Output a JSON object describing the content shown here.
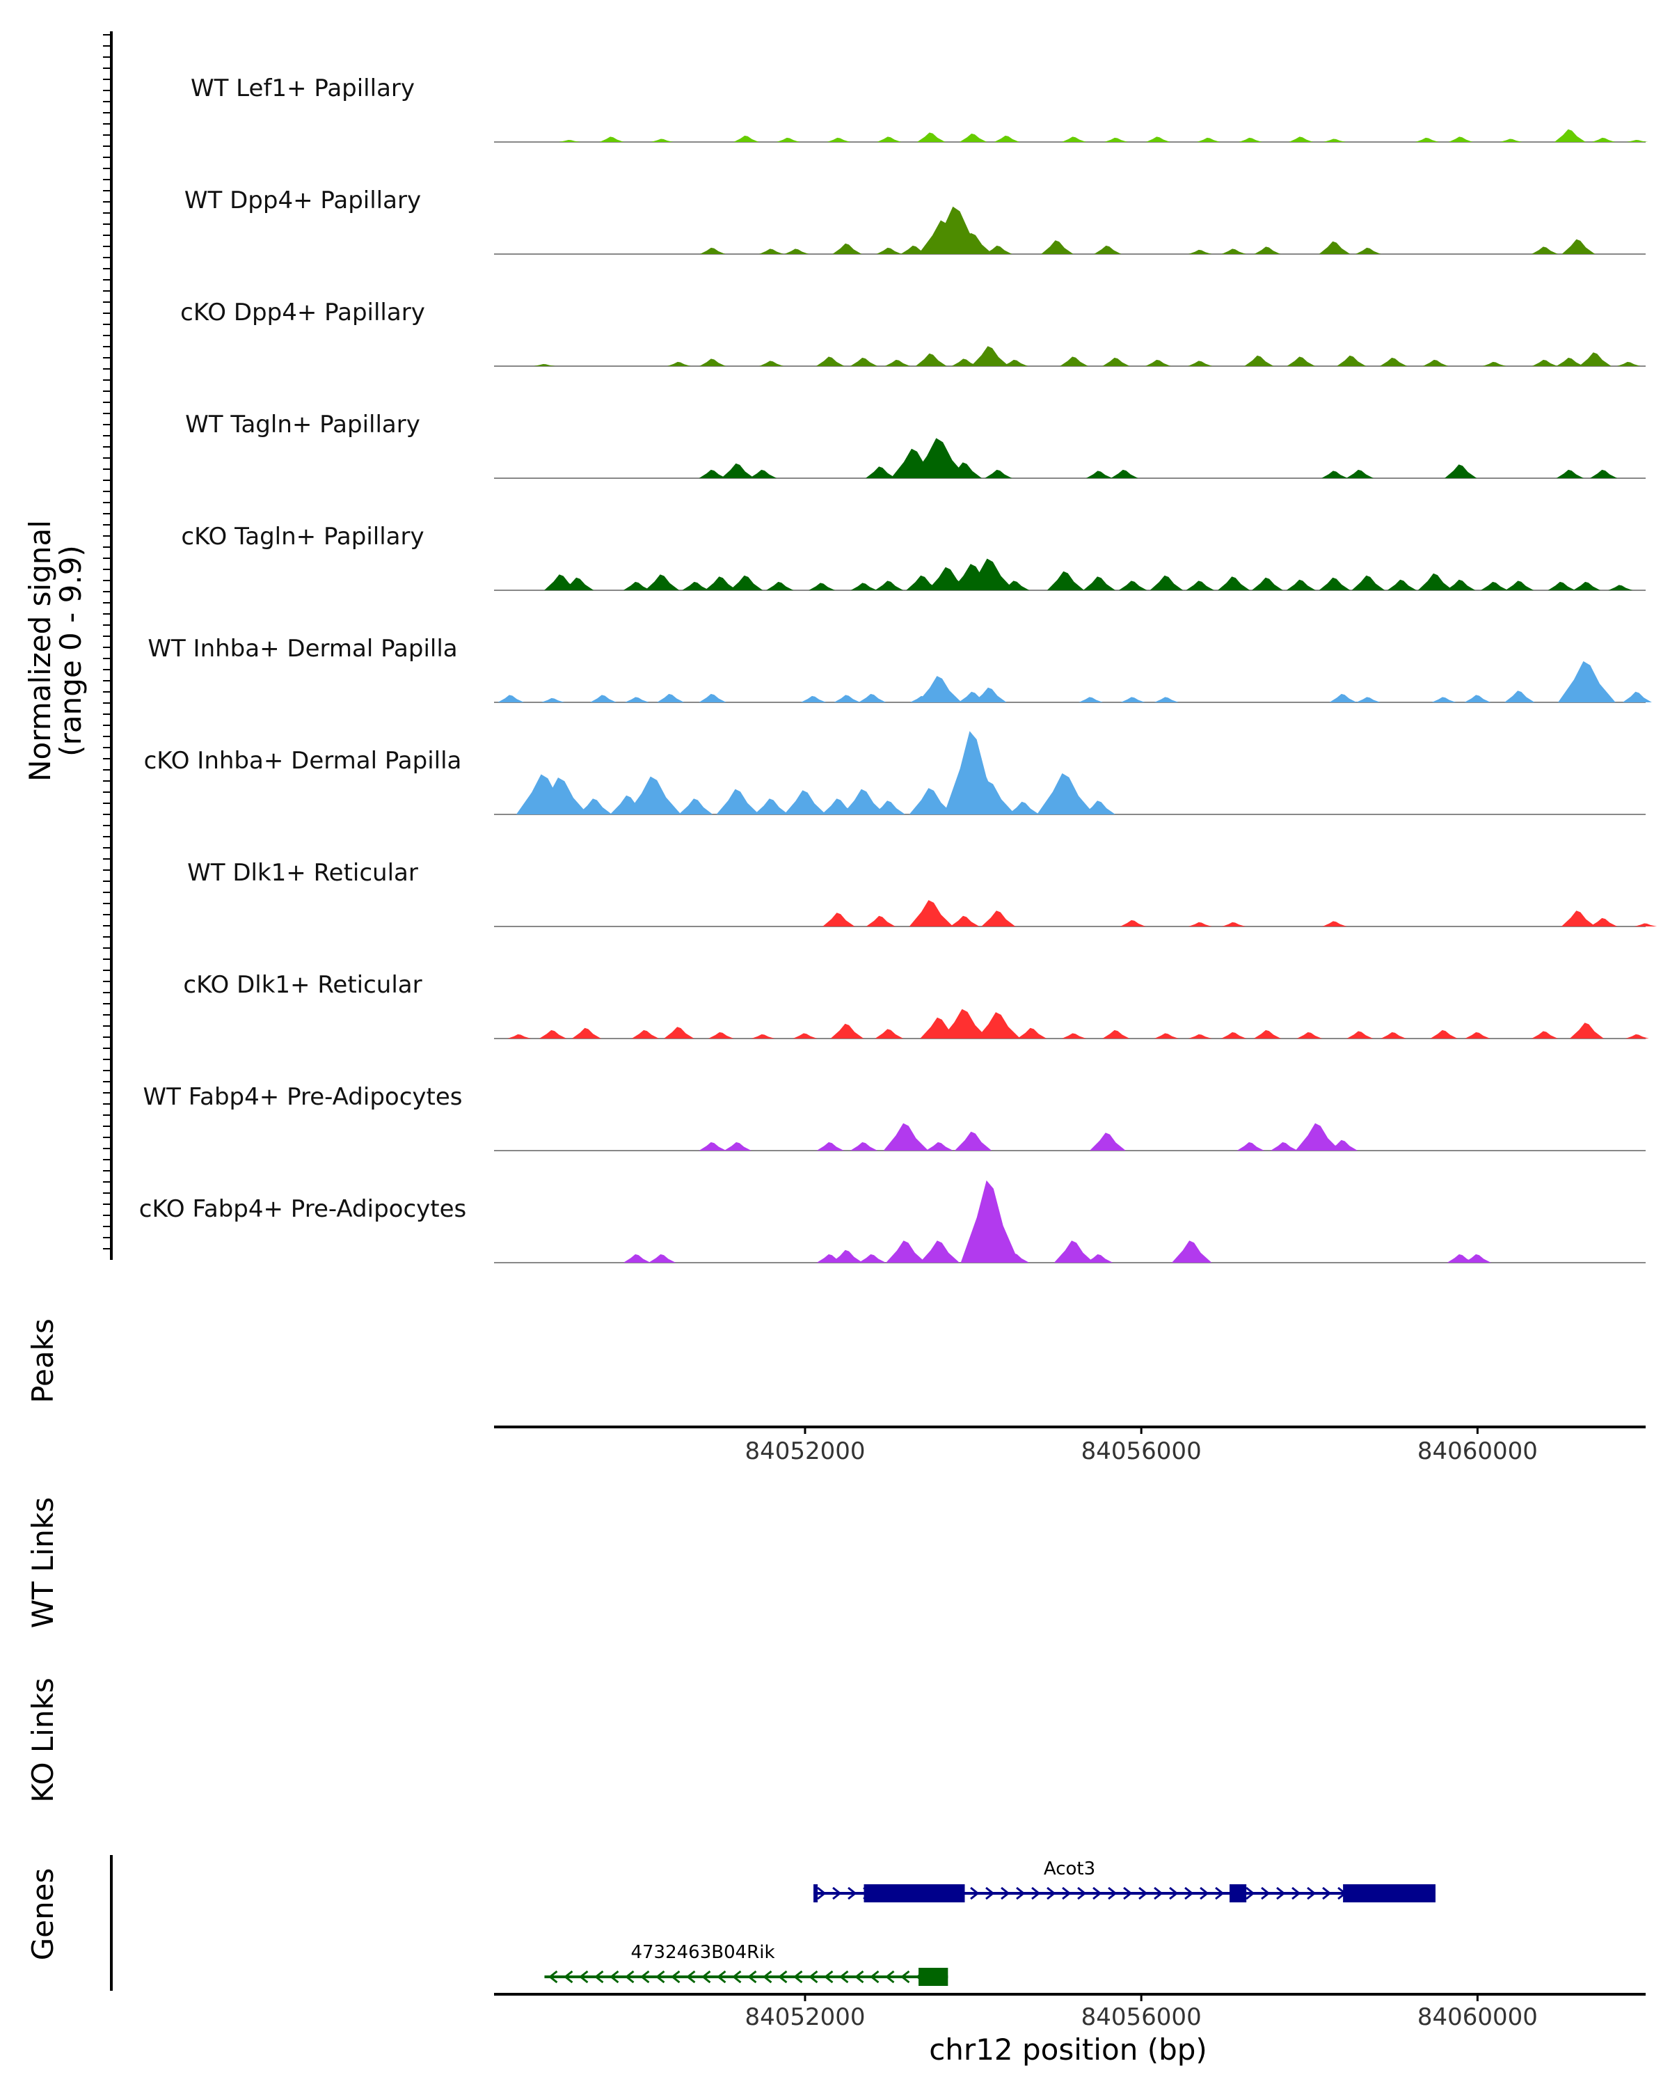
{
  "chart_data": {
    "type": "area",
    "title": "",
    "chromosome": "chr12",
    "xlim": [
      84048300,
      84062000
    ],
    "ylabel": "Normalized signal",
    "ylabel_range": "(range 0 - 9.9)",
    "ylim": [
      0,
      9.9
    ],
    "xticks": [
      84052000,
      84056000,
      84060000
    ],
    "xtick_labels": [
      "84052000",
      "84056000",
      "84060000"
    ],
    "xlabel": "chr12 position (bp)",
    "panel_labels": {
      "peaks": "Peaks",
      "wt_links": "WT Links",
      "ko_links": "KO Links",
      "genes": "Genes"
    },
    "tracks": [
      {
        "name": "WT Lef1+ Papillary",
        "color": "#66cc00",
        "peaks": [
          [
            84049200,
            0.2
          ],
          [
            84049700,
            0.5
          ],
          [
            84050300,
            0.3
          ],
          [
            84051300,
            0.6
          ],
          [
            84051800,
            0.4
          ],
          [
            84052400,
            0.4
          ],
          [
            84053000,
            0.5
          ],
          [
            84053500,
            0.9
          ],
          [
            84054000,
            0.8
          ],
          [
            84054400,
            0.6
          ],
          [
            84055200,
            0.5
          ],
          [
            84055700,
            0.4
          ],
          [
            84056200,
            0.5
          ],
          [
            84056800,
            0.4
          ],
          [
            84057300,
            0.4
          ],
          [
            84057900,
            0.5
          ],
          [
            84058300,
            0.3
          ],
          [
            84059400,
            0.4
          ],
          [
            84059800,
            0.5
          ],
          [
            84060400,
            0.3
          ],
          [
            84061100,
            1.2
          ],
          [
            84061500,
            0.4
          ],
          [
            84061900,
            0.2
          ]
        ]
      },
      {
        "name": "WT Dpp4+ Papillary",
        "color": "#4d8c00",
        "peaks": [
          [
            84050900,
            0.6
          ],
          [
            84051600,
            0.5
          ],
          [
            84051900,
            0.5
          ],
          [
            84052500,
            1.0
          ],
          [
            84053000,
            0.6
          ],
          [
            84053300,
            0.8
          ],
          [
            84053650,
            3.2
          ],
          [
            84053800,
            4.5
          ],
          [
            84054000,
            2.0
          ],
          [
            84054300,
            0.8
          ],
          [
            84055000,
            1.3
          ],
          [
            84055600,
            0.8
          ],
          [
            84056700,
            0.4
          ],
          [
            84057100,
            0.5
          ],
          [
            84057500,
            0.7
          ],
          [
            84058300,
            1.2
          ],
          [
            84058700,
            0.6
          ],
          [
            84060800,
            0.7
          ],
          [
            84061200,
            1.4
          ]
        ]
      },
      {
        "name": "cKO Dpp4+ Papillary",
        "color": "#4d8c00",
        "peaks": [
          [
            84048900,
            0.2
          ],
          [
            84050500,
            0.4
          ],
          [
            84050900,
            0.7
          ],
          [
            84051600,
            0.5
          ],
          [
            84052300,
            0.9
          ],
          [
            84052700,
            0.8
          ],
          [
            84053100,
            0.6
          ],
          [
            84053500,
            1.2
          ],
          [
            84053900,
            0.7
          ],
          [
            84054200,
            1.9
          ],
          [
            84054500,
            0.6
          ],
          [
            84055200,
            0.9
          ],
          [
            84055700,
            0.8
          ],
          [
            84056200,
            0.6
          ],
          [
            84056700,
            0.5
          ],
          [
            84057400,
            1.0
          ],
          [
            84057900,
            0.9
          ],
          [
            84058500,
            1.0
          ],
          [
            84059000,
            0.8
          ],
          [
            84059500,
            0.6
          ],
          [
            84060200,
            0.4
          ],
          [
            84060800,
            0.6
          ],
          [
            84061100,
            0.8
          ],
          [
            84061400,
            1.3
          ],
          [
            84061800,
            0.4
          ]
        ]
      },
      {
        "name": "WT Tagln+ Papillary",
        "color": "#006400",
        "peaks": [
          [
            84050900,
            0.8
          ],
          [
            84051200,
            1.4
          ],
          [
            84051500,
            0.8
          ],
          [
            84052900,
            1.1
          ],
          [
            84053300,
            2.8
          ],
          [
            84053600,
            3.8
          ],
          [
            84053900,
            1.5
          ],
          [
            84054300,
            0.8
          ],
          [
            84055500,
            0.7
          ],
          [
            84055800,
            0.8
          ],
          [
            84058300,
            0.7
          ],
          [
            84058600,
            0.8
          ],
          [
            84059800,
            1.3
          ],
          [
            84061100,
            0.8
          ],
          [
            84061500,
            0.8
          ]
        ]
      },
      {
        "name": "cKO Tagln+ Papillary",
        "color": "#006400",
        "peaks": [
          [
            84049100,
            1.5
          ],
          [
            84049300,
            1.2
          ],
          [
            84050000,
            0.8
          ],
          [
            84050300,
            1.5
          ],
          [
            84050700,
            0.8
          ],
          [
            84051000,
            1.3
          ],
          [
            84051300,
            1.4
          ],
          [
            84051700,
            0.8
          ],
          [
            84052200,
            0.7
          ],
          [
            84052700,
            0.7
          ],
          [
            84053000,
            0.9
          ],
          [
            84053400,
            1.4
          ],
          [
            84053700,
            2.2
          ],
          [
            84054000,
            2.5
          ],
          [
            84054200,
            3.0
          ],
          [
            84054500,
            0.9
          ],
          [
            84055100,
            1.8
          ],
          [
            84055500,
            1.3
          ],
          [
            84055900,
            0.9
          ],
          [
            84056300,
            1.4
          ],
          [
            84056700,
            0.9
          ],
          [
            84057100,
            1.3
          ],
          [
            84057500,
            1.2
          ],
          [
            84057900,
            1.0
          ],
          [
            84058300,
            1.2
          ],
          [
            84058700,
            1.4
          ],
          [
            84059100,
            1.0
          ],
          [
            84059500,
            1.6
          ],
          [
            84059800,
            1.0
          ],
          [
            84060200,
            0.8
          ],
          [
            84060500,
            0.9
          ],
          [
            84061000,
            0.8
          ],
          [
            84061300,
            0.8
          ],
          [
            84061700,
            0.5
          ]
        ]
      },
      {
        "name": "WT Inhba+ Dermal Papilla",
        "color": "#56a8e8",
        "peaks": [
          [
            84048500,
            0.7
          ],
          [
            84049000,
            0.4
          ],
          [
            84049600,
            0.7
          ],
          [
            84050000,
            0.5
          ],
          [
            84050400,
            0.8
          ],
          [
            84050900,
            0.8
          ],
          [
            84052100,
            0.6
          ],
          [
            84052500,
            0.7
          ],
          [
            84052800,
            0.8
          ],
          [
            84053400,
            0.6
          ],
          [
            84053600,
            2.5
          ],
          [
            84054000,
            1.0
          ],
          [
            84054200,
            1.4
          ],
          [
            84055400,
            0.5
          ],
          [
            84055900,
            0.5
          ],
          [
            84056300,
            0.5
          ],
          [
            84058400,
            0.8
          ],
          [
            84058700,
            0.5
          ],
          [
            84059600,
            0.5
          ],
          [
            84060000,
            0.7
          ],
          [
            84060500,
            1.1
          ],
          [
            84061300,
            3.9
          ],
          [
            84061900,
            1.0
          ]
        ]
      },
      {
        "name": "cKO Inhba+ Dermal Papilla",
        "color": "#56a8e8",
        "peaks": [
          [
            84048900,
            3.8
          ],
          [
            84049100,
            3.5
          ],
          [
            84049500,
            1.5
          ],
          [
            84049900,
            1.8
          ],
          [
            84050200,
            3.6
          ],
          [
            84050700,
            1.5
          ],
          [
            84051200,
            2.4
          ],
          [
            84051600,
            1.5
          ],
          [
            84052000,
            2.3
          ],
          [
            84052400,
            1.5
          ],
          [
            84052700,
            2.4
          ],
          [
            84053000,
            1.3
          ],
          [
            84053500,
            2.5
          ],
          [
            84054000,
            7.9
          ],
          [
            84054200,
            3.2
          ],
          [
            84054600,
            1.2
          ],
          [
            84055100,
            3.9
          ],
          [
            84055500,
            1.3
          ]
        ]
      },
      {
        "name": "WT Dlk1+ Reticular",
        "color": "#ff3030",
        "peaks": [
          [
            84052400,
            1.3
          ],
          [
            84052900,
            1.0
          ],
          [
            84053500,
            2.5
          ],
          [
            84053900,
            1.0
          ],
          [
            84054300,
            1.5
          ],
          [
            84055900,
            0.6
          ],
          [
            84056700,
            0.4
          ],
          [
            84057100,
            0.4
          ],
          [
            84058300,
            0.5
          ],
          [
            84061200,
            1.5
          ],
          [
            84061500,
            0.8
          ],
          [
            84062000,
            0.3
          ]
        ]
      },
      {
        "name": "cKO Dlk1+ Reticular",
        "color": "#ff3030",
        "peaks": [
          [
            84048600,
            0.4
          ],
          [
            84049000,
            0.8
          ],
          [
            84049400,
            1.0
          ],
          [
            84050100,
            0.8
          ],
          [
            84050500,
            1.1
          ],
          [
            84051000,
            0.6
          ],
          [
            84051500,
            0.4
          ],
          [
            84052000,
            0.5
          ],
          [
            84052500,
            1.4
          ],
          [
            84053000,
            0.9
          ],
          [
            84053600,
            2.0
          ],
          [
            84053900,
            2.8
          ],
          [
            84054300,
            2.5
          ],
          [
            84054700,
            1.0
          ],
          [
            84055200,
            0.5
          ],
          [
            84055700,
            0.8
          ],
          [
            84056300,
            0.5
          ],
          [
            84056700,
            0.4
          ],
          [
            84057100,
            0.6
          ],
          [
            84057500,
            0.8
          ],
          [
            84058000,
            0.6
          ],
          [
            84058600,
            0.7
          ],
          [
            84059000,
            0.6
          ],
          [
            84059600,
            0.8
          ],
          [
            84060000,
            0.6
          ],
          [
            84060800,
            0.7
          ],
          [
            84061300,
            1.5
          ],
          [
            84061900,
            0.4
          ]
        ]
      },
      {
        "name": "WT Fabp4+ Pre-Adipocytes",
        "color": "#b23aee",
        "peaks": [
          [
            84050900,
            0.8
          ],
          [
            84051200,
            0.8
          ],
          [
            84052300,
            0.8
          ],
          [
            84052700,
            0.8
          ],
          [
            84053200,
            2.6
          ],
          [
            84053600,
            0.8
          ],
          [
            84054000,
            1.8
          ],
          [
            84055600,
            1.7
          ],
          [
            84057300,
            0.8
          ],
          [
            84057700,
            0.8
          ],
          [
            84058100,
            2.6
          ],
          [
            84058400,
            1.0
          ]
        ]
      },
      {
        "name": "cKO Fabp4+ Pre-Adipocytes",
        "color": "#b23aee",
        "peaks": [
          [
            84050000,
            0.8
          ],
          [
            84050300,
            0.8
          ],
          [
            84052300,
            0.8
          ],
          [
            84052500,
            1.2
          ],
          [
            84052800,
            0.8
          ],
          [
            84053200,
            2.1
          ],
          [
            84053600,
            2.1
          ],
          [
            84054200,
            7.8
          ],
          [
            84054500,
            0.9
          ],
          [
            84055200,
            2.1
          ],
          [
            84055500,
            0.8
          ],
          [
            84056600,
            2.1
          ],
          [
            84059800,
            0.8
          ],
          [
            84060000,
            0.8
          ]
        ]
      }
    ],
    "genes": [
      {
        "name": "Acot3",
        "strand": "+",
        "color": "#00008b",
        "start": 84052100,
        "end": 84059500,
        "exons": [
          [
            84052100,
            84052150
          ],
          [
            84052700,
            84053900
          ],
          [
            84057050,
            84057250
          ],
          [
            84058400,
            84059500
          ]
        ]
      },
      {
        "name": "4732463B04Rik",
        "strand": "-",
        "color": "#006400",
        "start": 84048900,
        "end": 84053700,
        "exons": [
          [
            84053350,
            84053700
          ]
        ]
      }
    ]
  }
}
